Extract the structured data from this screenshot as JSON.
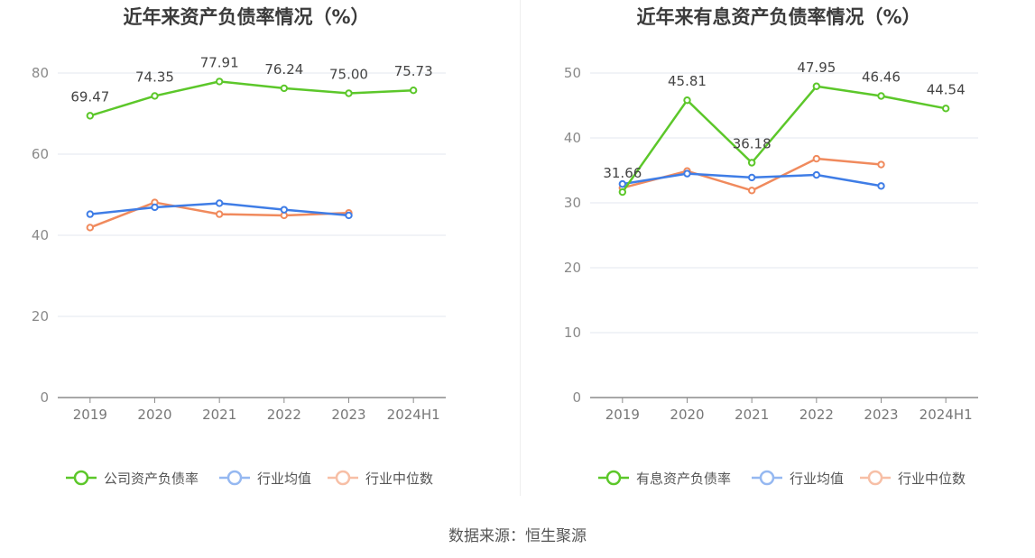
{
  "source_text": "数据来源：恒生聚源",
  "chart_data": [
    {
      "type": "line",
      "title": "近年来资产负债率情况（%）",
      "categories": [
        "2019",
        "2020",
        "2021",
        "2022",
        "2023",
        "2024H1"
      ],
      "yticks": [
        "0",
        "20",
        "40",
        "60",
        "80"
      ],
      "ylim": [
        0,
        80
      ],
      "grid": true,
      "legend_position": "bottom",
      "series": [
        {
          "name": "公司资产负债率",
          "color": "#5cc72a",
          "values": [
            69.47,
            74.35,
            77.91,
            76.24,
            75.0,
            75.73
          ],
          "labels": [
            "69.47",
            "74.35",
            "77.91",
            "76.24",
            "75.00",
            "75.73"
          ]
        },
        {
          "name": "行业均值",
          "color": "#3f7de6",
          "values": [
            45.2,
            46.9,
            47.9,
            46.3,
            44.9,
            null
          ]
        },
        {
          "name": "行业中位数",
          "color": "#f08a5d",
          "values": [
            41.9,
            48.1,
            45.2,
            44.9,
            45.5,
            null
          ]
        }
      ]
    },
    {
      "type": "line",
      "title": "近年来有息资产负债率情况（%）",
      "categories": [
        "2019",
        "2020",
        "2021",
        "2022",
        "2023",
        "2024H1"
      ],
      "yticks": [
        "0",
        "10",
        "20",
        "30",
        "40",
        "50"
      ],
      "ylim": [
        0,
        50
      ],
      "grid": true,
      "legend_position": "bottom",
      "series": [
        {
          "name": "有息资产负债率",
          "color": "#5cc72a",
          "values": [
            31.66,
            45.81,
            36.18,
            47.95,
            46.46,
            44.54
          ],
          "labels": [
            "31.66",
            "45.81",
            "36.18",
            "47.95",
            "46.46",
            "44.54"
          ]
        },
        {
          "name": "行业均值",
          "color": "#3f7de6",
          "values": [
            32.9,
            34.5,
            33.9,
            34.3,
            32.6,
            null
          ]
        },
        {
          "name": "行业中位数",
          "color": "#f08a5d",
          "values": [
            32.3,
            34.9,
            31.9,
            36.8,
            35.9,
            null
          ]
        }
      ]
    }
  ]
}
